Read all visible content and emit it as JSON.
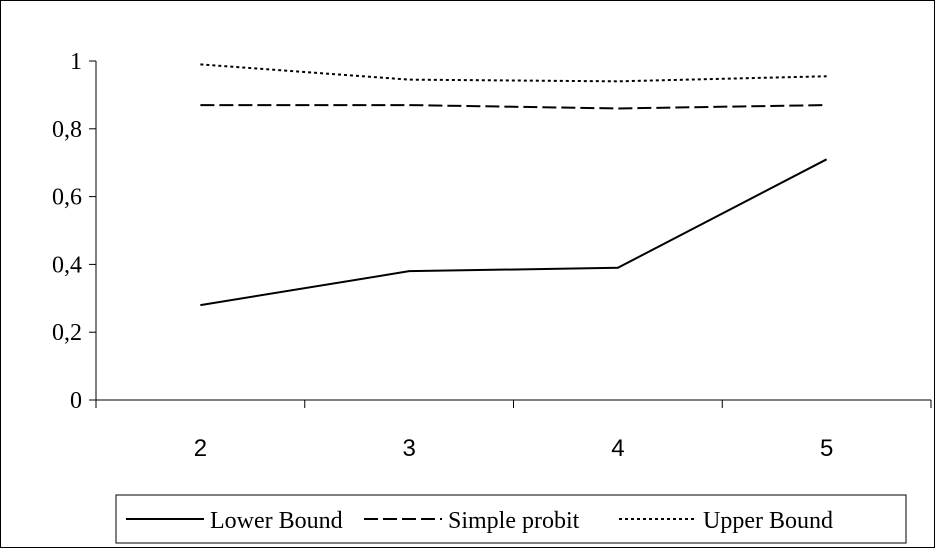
{
  "chart_data": {
    "type": "line",
    "title": "",
    "xlabel": "",
    "ylabel": "",
    "categories": [
      "2",
      "3",
      "4",
      "5"
    ],
    "ylim": [
      0,
      1
    ],
    "yticks": [
      0,
      0.2,
      0.4,
      0.6,
      0.8,
      1
    ],
    "ytick_labels": [
      "0",
      "0,2",
      "0,4",
      "0,6",
      "0,8",
      "1"
    ],
    "grid": false,
    "legend_position": "bottom",
    "series": [
      {
        "name": "Lower Bound",
        "values": [
          0.28,
          0.38,
          0.39,
          0.71
        ],
        "color": "#000000",
        "dash": "solid"
      },
      {
        "name": "Simple probit",
        "values": [
          0.87,
          0.87,
          0.86,
          0.87
        ],
        "color": "#000000",
        "dash": "dashed"
      },
      {
        "name": "Upper Bound",
        "values": [
          0.99,
          0.945,
          0.94,
          0.955
        ],
        "color": "#000000",
        "dash": "dotted"
      }
    ]
  }
}
